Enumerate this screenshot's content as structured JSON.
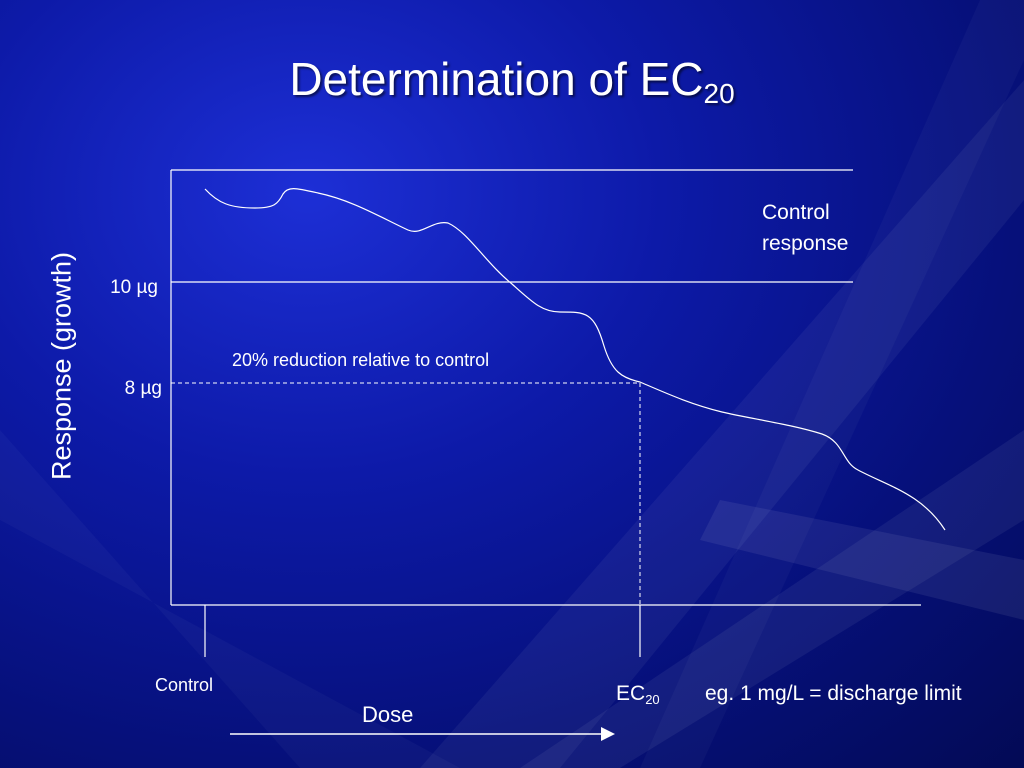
{
  "title": {
    "main": "Determination of EC",
    "sub": "20"
  },
  "axes": {
    "y_label": "Response (growth)",
    "x_label": "Dose",
    "x_start_label": "Control"
  },
  "levels": [
    {
      "key": "control",
      "label": "10 µg",
      "value": 10
    },
    {
      "key": "reduced",
      "label": "8 µg",
      "value": 8
    }
  ],
  "annotations": {
    "control_response_line1": "Control",
    "control_response_line2": "response",
    "reduction_note": "20% reduction relative to control",
    "ec_main": "EC",
    "ec_sub": "20",
    "ec_note": "eg.  1 mg/L = discharge limit"
  },
  "colors": {
    "background": "#0d1aa8",
    "lines": "#ffffff"
  }
}
